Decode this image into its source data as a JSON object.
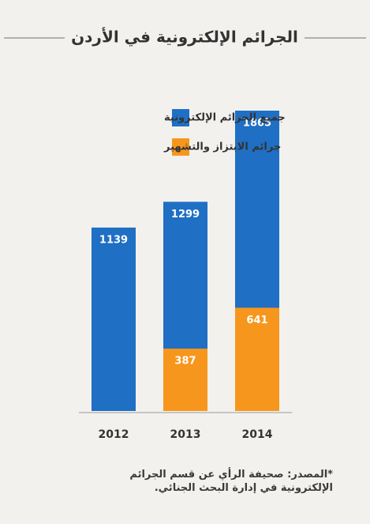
{
  "chart_data": {
    "type": "bar",
    "title": "الجرائم الإلكترونية في الأردن",
    "categories": [
      "2012",
      "2013",
      "2014"
    ],
    "series": [
      {
        "name": "جميع الجرائم الإلكترونية",
        "color": "#1f6fc4",
        "values": [
          1139,
          1299,
          1865
        ]
      },
      {
        "name": "جرائم الابتزاز والتشهير",
        "color": "#f7961d",
        "values": [
          null,
          387,
          641
        ]
      }
    ],
    "note": "*المصدر: صحيفة الرأي عن قسم الجرائم الإلكترونية في إدارة البحث الجنائي."
  }
}
